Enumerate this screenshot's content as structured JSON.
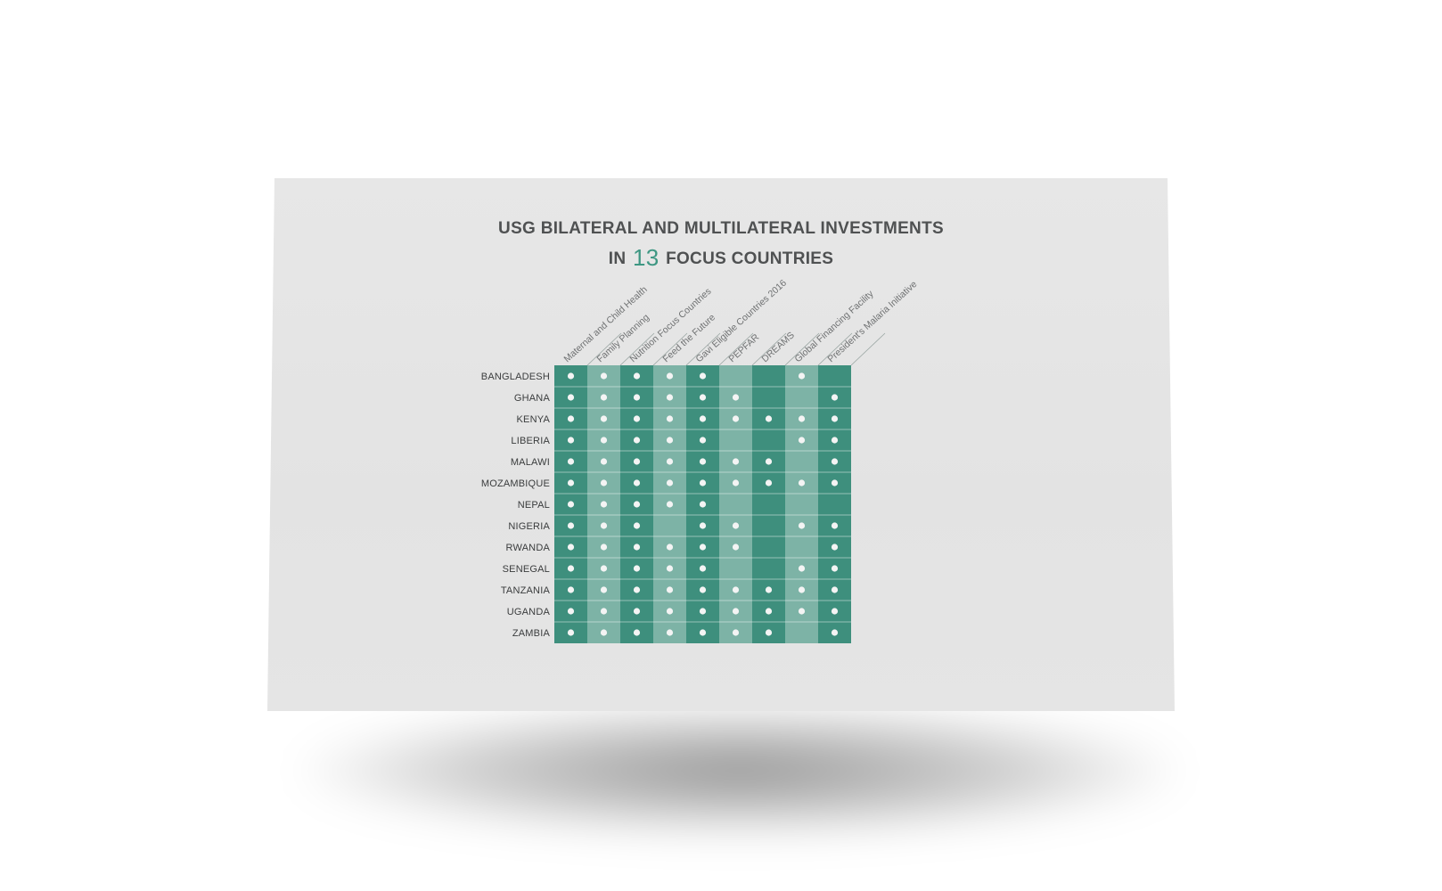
{
  "colors": {
    "dark_column": "#3e8f7d",
    "light_column": "#7db3a6",
    "dot": "#f4f4f4",
    "title_text": "#4f5152",
    "accent_number": "#3e9783",
    "card_background": "#e6e6e6"
  },
  "chart_data": {
    "type": "table",
    "title": {
      "line1": "USG BILATERAL AND MULTILATERAL INVESTMENTS",
      "line2_prefix": "IN",
      "line2_number": "13",
      "line2_suffix": "FOCUS COUNTRIES"
    },
    "columns": [
      "Maternal and Child Health",
      "Family Planning",
      "Nutrition Focus Countries",
      "Feed the Future",
      "Gavi Eligible Countries 2016",
      "PEPFAR",
      "DREAMS",
      "Global Financing Facility",
      "President's Malaria Initiative"
    ],
    "rows": [
      "BANGLADESH",
      "GHANA",
      "KENYA",
      "LIBERIA",
      "MALAWI",
      "MOZAMBIQUE",
      "NEPAL",
      "NIGERIA",
      "RWANDA",
      "SENEGAL",
      "TANZANIA",
      "UGANDA",
      "ZAMBIA"
    ],
    "values": [
      [
        1,
        1,
        1,
        1,
        1,
        0,
        0,
        1,
        0
      ],
      [
        1,
        1,
        1,
        1,
        1,
        1,
        0,
        0,
        1
      ],
      [
        1,
        1,
        1,
        1,
        1,
        1,
        1,
        1,
        1
      ],
      [
        1,
        1,
        1,
        1,
        1,
        0,
        0,
        1,
        1
      ],
      [
        1,
        1,
        1,
        1,
        1,
        1,
        1,
        0,
        1
      ],
      [
        1,
        1,
        1,
        1,
        1,
        1,
        1,
        1,
        1
      ],
      [
        1,
        1,
        1,
        1,
        1,
        0,
        0,
        0,
        0
      ],
      [
        1,
        1,
        1,
        0,
        1,
        1,
        0,
        1,
        1
      ],
      [
        1,
        1,
        1,
        1,
        1,
        1,
        0,
        0,
        1
      ],
      [
        1,
        1,
        1,
        1,
        1,
        0,
        0,
        1,
        1
      ],
      [
        1,
        1,
        1,
        1,
        1,
        1,
        1,
        1,
        1
      ],
      [
        1,
        1,
        1,
        1,
        1,
        1,
        1,
        1,
        1
      ],
      [
        1,
        1,
        1,
        1,
        1,
        1,
        1,
        0,
        1
      ]
    ],
    "column_shading": [
      "dark",
      "light",
      "dark",
      "light",
      "dark",
      "light",
      "dark",
      "light",
      "dark"
    ],
    "legend": "none",
    "grid": true
  }
}
